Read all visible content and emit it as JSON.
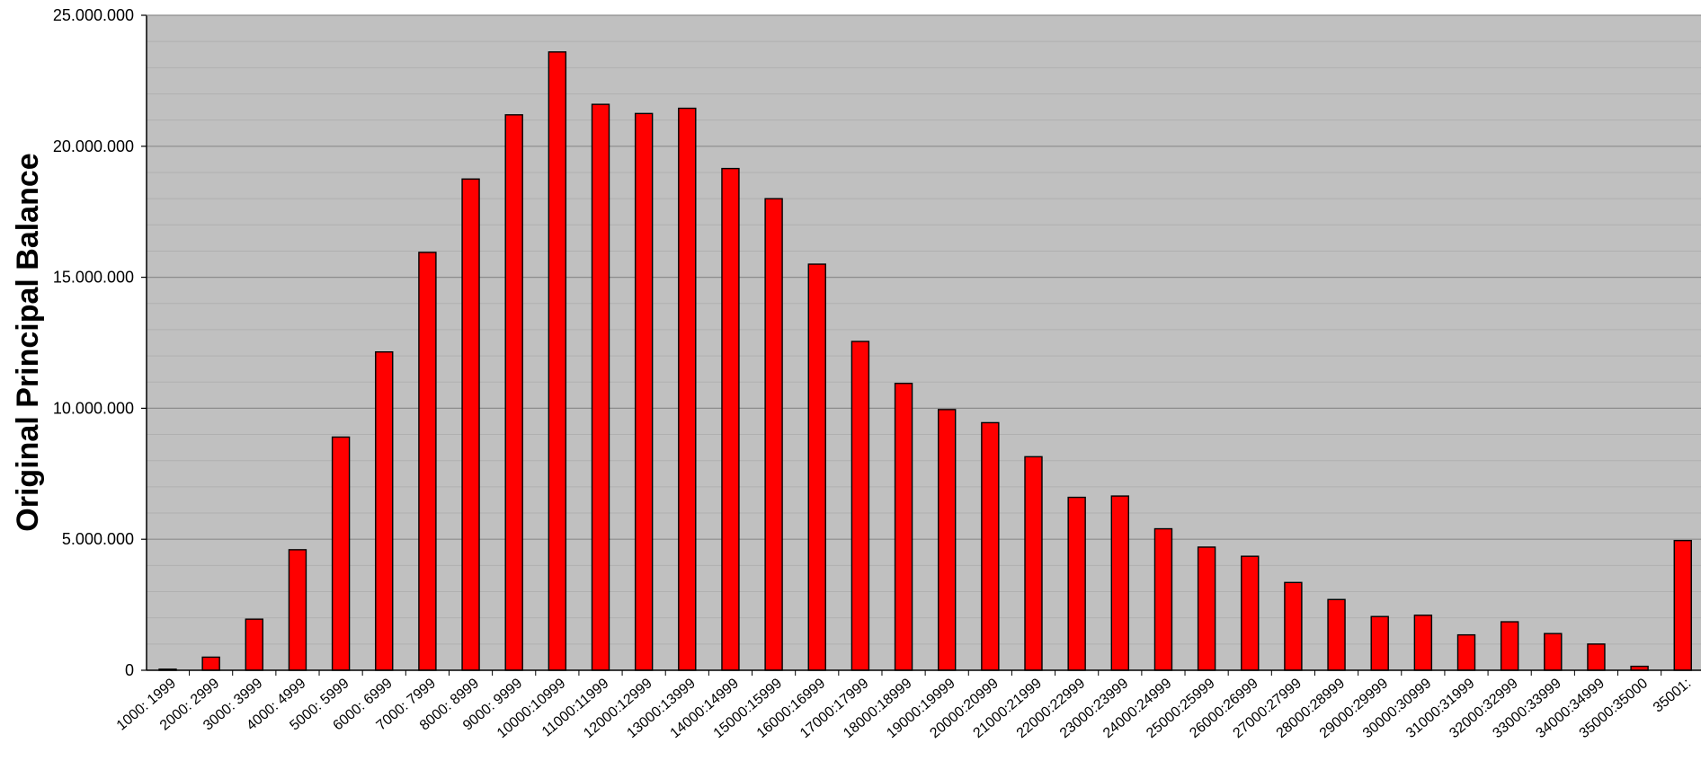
{
  "chart_data": {
    "type": "bar",
    "title": "",
    "xlabel": "",
    "ylabel": "Original Principal Balance",
    "ylim": [
      0,
      25000000
    ],
    "yticks": [
      0,
      5000000,
      10000000,
      15000000,
      20000000,
      25000000
    ],
    "ytick_labels": [
      "0",
      "5.000.000",
      "10.000.000",
      "15.000.000",
      "20.000.000",
      "25.000.000"
    ],
    "grid": true,
    "legend": "none",
    "categories": [
      "1000: 1999",
      "2000: 2999",
      "3000: 3999",
      "4000: 4999",
      "5000: 5999",
      "6000: 6999",
      "7000: 7999",
      "8000: 8999",
      "9000: 9999",
      "10000:10999",
      "11000:11999",
      "12000:12999",
      "13000:13999",
      "14000:14999",
      "15000:15999",
      "16000:16999",
      "17000:17999",
      "18000:18999",
      "19000:19999",
      "20000:20999",
      "21000:21999",
      "22000:22999",
      "23000:23999",
      "24000:24999",
      "25000:25999",
      "26000:26999",
      "27000:27999",
      "28000:28999",
      "29000:29999",
      "30000:30999",
      "31000:31999",
      "32000:32999",
      "33000:33999",
      "34000:34999",
      "35000:35000",
      "35001:"
    ],
    "values": [
      40000,
      500000,
      1950000,
      4600000,
      8900000,
      12150000,
      15950000,
      18750000,
      21200000,
      23600000,
      21600000,
      21250000,
      21450000,
      19150000,
      18000000,
      15500000,
      12550000,
      10950000,
      9950000,
      9450000,
      8150000,
      6600000,
      6650000,
      5400000,
      4700000,
      4350000,
      3350000,
      2700000,
      2050000,
      2100000,
      1350000,
      1850000,
      1400000,
      1000000,
      150000,
      4950000
    ],
    "colors": {
      "bar_fill": "#FF0000",
      "bar_stroke": "#000000",
      "plot_bg": "#C0C0C0",
      "major_grid": "#8C8C8C",
      "minor_grid": "#B0B0B0"
    }
  }
}
